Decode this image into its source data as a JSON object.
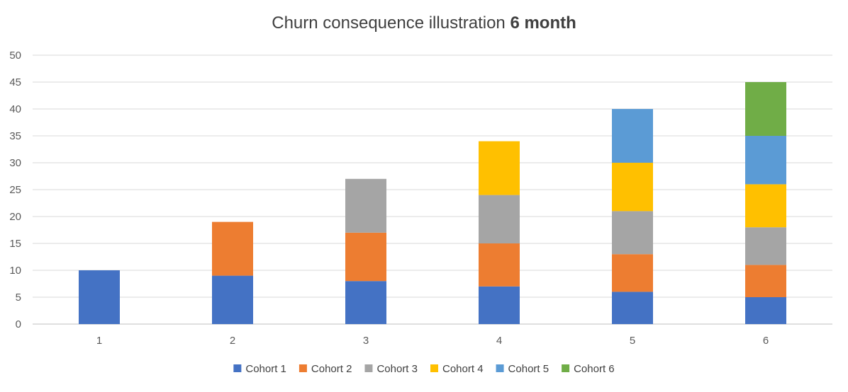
{
  "chart_data": {
    "type": "bar",
    "stacked": true,
    "title": "Churn consequence illustration",
    "title_emphasis": "6 month",
    "xlabel": "",
    "ylabel": "",
    "categories": [
      "1",
      "2",
      "3",
      "4",
      "5",
      "6"
    ],
    "ylim": [
      0,
      50
    ],
    "yticks": [
      0,
      5,
      10,
      15,
      20,
      25,
      30,
      35,
      40,
      45,
      50
    ],
    "grid": true,
    "legend_position": "bottom",
    "series": [
      {
        "name": "Cohort 1",
        "color": "#4472c4",
        "values": [
          10,
          9,
          8,
          7,
          6,
          5
        ]
      },
      {
        "name": "Cohort 2",
        "color": "#ed7d31",
        "values": [
          0,
          10,
          9,
          8,
          7,
          6
        ]
      },
      {
        "name": "Cohort 3",
        "color": "#a5a5a5",
        "values": [
          0,
          0,
          10,
          9,
          8,
          7
        ]
      },
      {
        "name": "Cohort 4",
        "color": "#ffc000",
        "values": [
          0,
          0,
          0,
          10,
          9,
          8
        ]
      },
      {
        "name": "Cohort 5",
        "color": "#5b9bd5",
        "values": [
          0,
          0,
          0,
          0,
          10,
          9
        ]
      },
      {
        "name": "Cohort 6",
        "color": "#70ad47",
        "values": [
          0,
          0,
          0,
          0,
          0,
          10
        ]
      }
    ]
  }
}
